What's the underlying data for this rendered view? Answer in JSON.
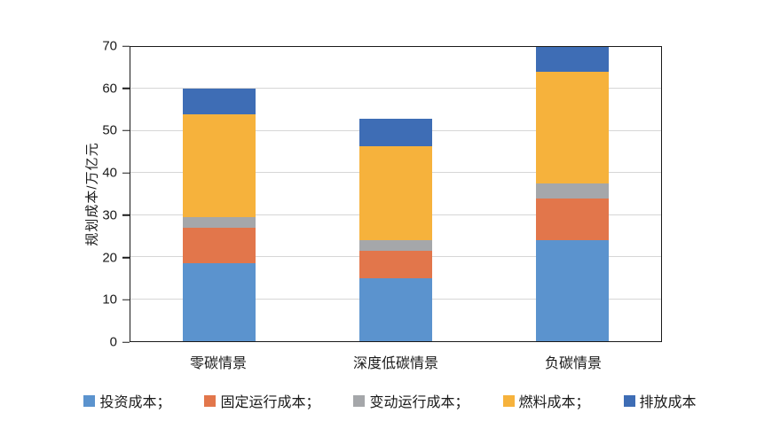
{
  "chart_data": {
    "type": "bar",
    "stacked": true,
    "title": "",
    "xlabel": "",
    "ylabel": "规划成本/万亿元",
    "ylim": [
      0,
      70
    ],
    "yticks": [
      0,
      10,
      20,
      30,
      40,
      50,
      60,
      70
    ],
    "grid": "horizontal",
    "legend_position": "bottom",
    "categories": [
      "零碳情景",
      "深度低碳情景",
      "负碳情景"
    ],
    "series": [
      {
        "key": "investment-cost",
        "name": "投资成本",
        "legend_label": "投资成本；",
        "color": "#5B93CE",
        "values": [
          18.5,
          15.0,
          24.0
        ]
      },
      {
        "key": "fixed-operating-cost",
        "name": "固定运行成本",
        "legend_label": "固定运行成本；",
        "color": "#E2764B",
        "values": [
          8.5,
          6.5,
          10.0
        ]
      },
      {
        "key": "variable-operating-cost",
        "name": "变动运行成本",
        "legend_label": "变动运行成本；",
        "color": "#A5A7AA",
        "values": [
          2.5,
          2.5,
          3.5
        ]
      },
      {
        "key": "fuel-cost",
        "name": "燃料成本",
        "legend_label": "燃料成本；",
        "color": "#F6B23C",
        "values": [
          24.5,
          22.5,
          26.5
        ]
      },
      {
        "key": "emission-cost",
        "name": "排放成本",
        "legend_label": "排放成本",
        "color": "#3E6DB5",
        "values": [
          6.0,
          6.5,
          6.0
        ]
      }
    ],
    "bar_totals": [
      60,
      53,
      70
    ]
  },
  "colors": {
    "axis": "#1A1A1A",
    "gridline": "#D6D6D6",
    "background": "#FFFFFF"
  }
}
